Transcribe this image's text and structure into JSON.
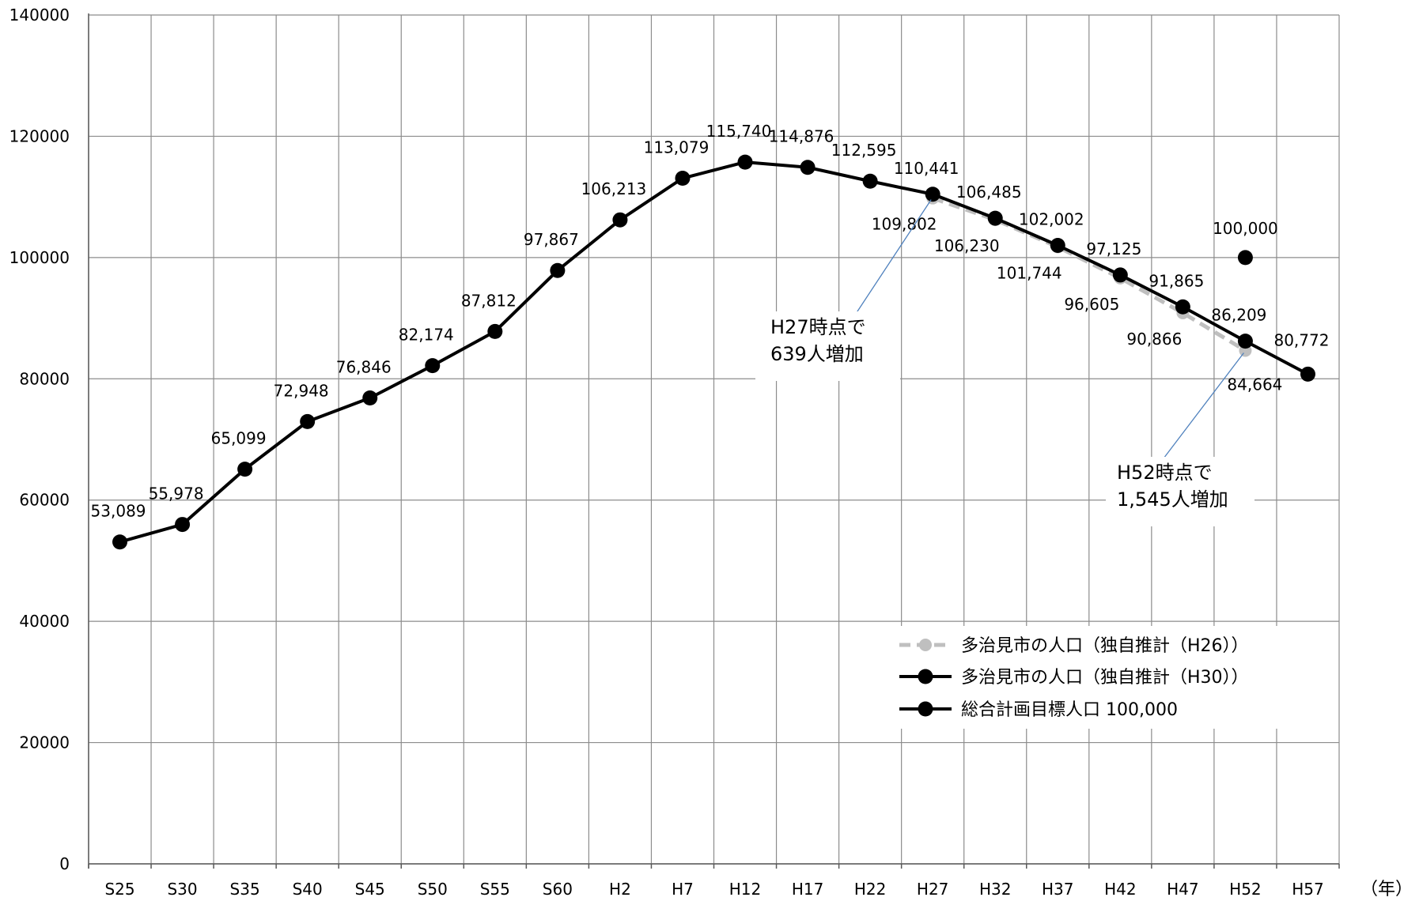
{
  "chart_data": {
    "type": "line",
    "title": "",
    "xlabel": "（年）",
    "ylabel": "",
    "ylim": [
      0,
      140000
    ],
    "yticks": [
      "0",
      "20000",
      "40000",
      "60000",
      "80000",
      "100000",
      "120000",
      "140000"
    ],
    "categories": [
      "S25",
      "S30",
      "S35",
      "S40",
      "S45",
      "S50",
      "S55",
      "S60",
      "H2",
      "H7",
      "H12",
      "H17",
      "H22",
      "H27",
      "H32",
      "H37",
      "H42",
      "H47",
      "H52",
      "H57"
    ],
    "grid": true,
    "legend_position": "bottom-right",
    "series": [
      {
        "name": "多治見市の人口（独自推計（H26））",
        "color": "#bfbfbf",
        "dashed": true,
        "values": [
          null,
          null,
          null,
          null,
          null,
          null,
          null,
          null,
          null,
          null,
          null,
          null,
          null,
          109802,
          106230,
          101744,
          96605,
          90866,
          84664,
          null
        ],
        "labels": [
          null,
          null,
          null,
          null,
          null,
          null,
          null,
          null,
          null,
          null,
          null,
          null,
          null,
          "109,802",
          "106,230",
          "101,744",
          "96,605",
          "90,866",
          "84,664",
          null
        ]
      },
      {
        "name": "多治見市の人口（独自推計（H30））",
        "color": "#000000",
        "dashed": false,
        "values": [
          53089,
          55978,
          65099,
          72948,
          76846,
          82174,
          87812,
          97867,
          106213,
          113079,
          115740,
          114876,
          112595,
          110441,
          106485,
          102002,
          97125,
          91865,
          86209,
          80772
        ],
        "labels": [
          "53,089",
          "55,978",
          "65,099",
          "72,948",
          "76,846",
          "82,174",
          "87,812",
          "97,867",
          "106,213",
          "113,079",
          "115,740",
          "114,876",
          "112,595",
          "110,441",
          "106,485",
          "102,002",
          "97,125",
          "91,865",
          "86,209",
          "80,772"
        ]
      },
      {
        "name": "総合計画目標人口 100,000",
        "color": "#000000",
        "dashed": false,
        "values": [
          null,
          null,
          null,
          null,
          null,
          null,
          null,
          null,
          null,
          null,
          null,
          null,
          null,
          null,
          null,
          null,
          null,
          null,
          100000,
          null
        ],
        "labels": [
          null,
          null,
          null,
          null,
          null,
          null,
          null,
          null,
          null,
          null,
          null,
          null,
          null,
          null,
          null,
          null,
          null,
          null,
          "100,000",
          null
        ]
      }
    ],
    "annotations": [
      {
        "line1": "H27時点で",
        "line2": "639人増加"
      },
      {
        "line1": "H52時点で",
        "line2": "1,545人増加"
      }
    ]
  }
}
